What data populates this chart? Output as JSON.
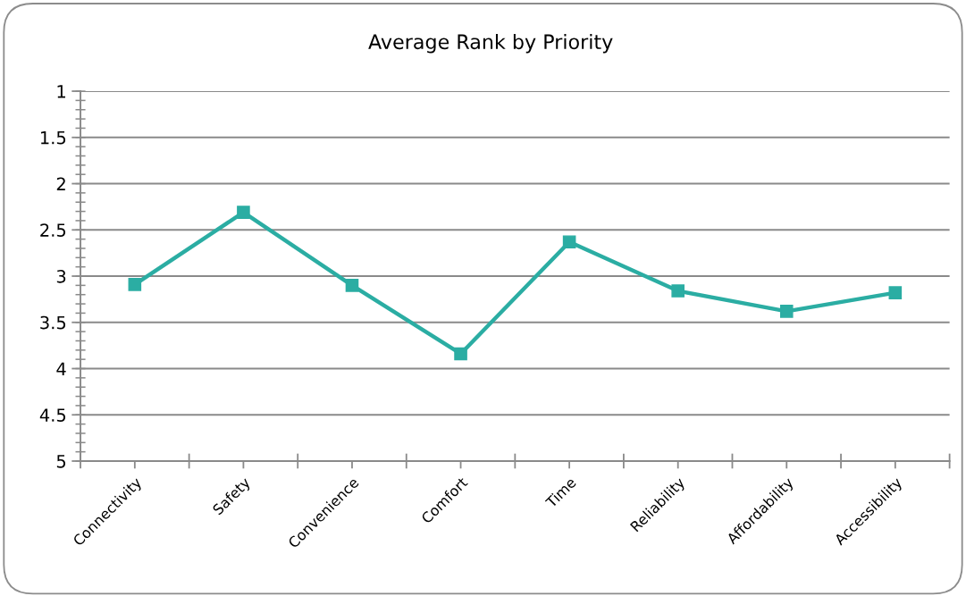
{
  "chart_data": {
    "type": "line",
    "title": "Average Rank by Priority",
    "categories": [
      "Connectivity",
      "Safety",
      "Convenience",
      "Comfort",
      "Time",
      "Reliability",
      "Affordability",
      "Accessibility"
    ],
    "series": [
      {
        "color": "#2bada3",
        "values": [
          3.09,
          2.31,
          3.1,
          3.84,
          2.63,
          3.16,
          3.38,
          3.18
        ]
      }
    ],
    "ylim": [
      5,
      1
    ],
    "yticks": [
      1,
      1.5,
      2,
      2.5,
      3,
      3.5,
      4,
      4.5,
      5
    ],
    "grid": "y",
    "marker": "square",
    "line_style": "solid"
  }
}
